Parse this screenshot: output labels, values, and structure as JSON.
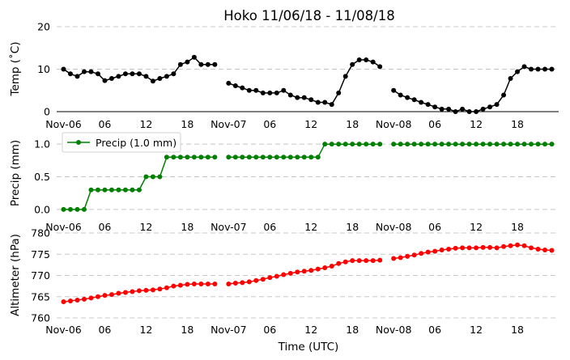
{
  "chart_data": {
    "type": "line",
    "title": "Hoko 11/06/18 - 11/08/18",
    "xlabel": "Time (UTC)",
    "x_tick_labels": [
      "Nov-06",
      "06",
      "12",
      "18",
      "Nov-07",
      "06",
      "12",
      "18",
      "Nov-08",
      "06",
      "12",
      "18"
    ],
    "x_tick_hours": [
      0,
      6,
      12,
      18,
      24,
      30,
      36,
      42,
      48,
      54,
      60,
      66
    ],
    "xlim_hours": [
      -1,
      72
    ],
    "panels": [
      {
        "ylabel": "Temp ($^\\circ$C)",
        "ylabel_display": "Temp (˚C)",
        "ylim": [
          0,
          20
        ],
        "yticks": [
          "0",
          "10",
          "20"
        ],
        "ytick_values": [
          0,
          10,
          20
        ],
        "grid": true,
        "color": "#000000",
        "series": [
          {
            "x": [
              0,
              1,
              2,
              3,
              4,
              5,
              6,
              7,
              8,
              9,
              10,
              11,
              12,
              13,
              14,
              15,
              16,
              17,
              18,
              19,
              20,
              21,
              22,
              23,
              24,
              25,
              26,
              27,
              28,
              29,
              30,
              31,
              32,
              33,
              34,
              35,
              36,
              37,
              38,
              39,
              40,
              41,
              42,
              43,
              44,
              45,
              46,
              47,
              48,
              49,
              50,
              51,
              52,
              53,
              54,
              55,
              56,
              57,
              58,
              59,
              60,
              61,
              62,
              63,
              64,
              65,
              66,
              67,
              68,
              69,
              70,
              71
            ],
            "values": [
              10,
              8.9,
              8.3,
              9.4,
              9.4,
              8.9,
              7.3,
              7.8,
              8.3,
              8.9,
              8.9,
              8.9,
              8.3,
              7.2,
              7.8,
              8.3,
              8.9,
              11.1,
              11.7,
              12.8,
              11.1,
              11.1,
              11.1,
              null,
              6.7,
              6.1,
              5.6,
              5,
              5,
              4.4,
              4.4,
              4.4,
              5,
              3.9,
              3.3,
              3.3,
              2.8,
              2.2,
              2.2,
              1.7,
              4.4,
              8.3,
              11.1,
              12.2,
              12.2,
              11.7,
              10.6,
              null,
              5,
              3.9,
              3.3,
              2.8,
              2.2,
              1.7,
              1.1,
              0.6,
              0.6,
              0,
              0.6,
              0,
              0,
              0.6,
              1.1,
              1.7,
              3.9,
              7.8,
              9.4,
              10.6,
              10,
              10,
              10,
              10
            ]
          }
        ]
      },
      {
        "ylabel": "Precip (mm)",
        "ylim": [
          -0.1,
          1.2
        ],
        "yticks": [
          "0.0",
          "0.5",
          "1.0"
        ],
        "ytick_values": [
          0,
          0.5,
          1.0
        ],
        "grid": true,
        "legend": "upper left",
        "color": "#008000",
        "series": [
          {
            "name": "Precip (1.0 mm)",
            "x": [
              0,
              1,
              2,
              3,
              4,
              5,
              6,
              7,
              8,
              9,
              10,
              11,
              12,
              13,
              14,
              15,
              16,
              17,
              18,
              19,
              20,
              21,
              22,
              23,
              24,
              25,
              26,
              27,
              28,
              29,
              30,
              31,
              32,
              33,
              34,
              35,
              36,
              37,
              38,
              39,
              40,
              41,
              42,
              43,
              44,
              45,
              46,
              47,
              48,
              49,
              50,
              51,
              52,
              53,
              54,
              55,
              56,
              57,
              58,
              59,
              60,
              61,
              62,
              63,
              64,
              65,
              66,
              67,
              68,
              69,
              70,
              71
            ],
            "values": [
              0,
              0,
              0,
              0,
              0.3,
              0.3,
              0.3,
              0.3,
              0.3,
              0.3,
              0.3,
              0.3,
              0.5,
              0.5,
              0.5,
              0.8,
              0.8,
              0.8,
              0.8,
              0.8,
              0.8,
              0.8,
              0.8,
              null,
              0.8,
              0.8,
              0.8,
              0.8,
              0.8,
              0.8,
              0.8,
              0.8,
              0.8,
              0.8,
              0.8,
              0.8,
              0.8,
              0.8,
              1,
              1,
              1,
              1,
              1,
              1,
              1,
              1,
              1,
              null,
              1,
              1,
              1,
              1,
              1,
              1,
              1,
              1,
              1,
              1,
              1,
              1,
              1,
              1,
              1,
              1,
              1,
              1,
              1,
              1,
              1,
              1,
              1,
              1
            ]
          }
        ]
      },
      {
        "ylabel": "Altimeter (hPa)",
        "ylim": [
          760,
          780
        ],
        "yticks": [
          "760",
          "765",
          "770",
          "775",
          "780"
        ],
        "ytick_values": [
          760,
          765,
          770,
          775,
          780
        ],
        "grid": true,
        "color": "#ff0000",
        "series": [
          {
            "x": [
              0,
              1,
              2,
              3,
              4,
              5,
              6,
              7,
              8,
              9,
              10,
              11,
              12,
              13,
              14,
              15,
              16,
              17,
              18,
              19,
              20,
              21,
              22,
              23,
              24,
              25,
              26,
              27,
              28,
              29,
              30,
              31,
              32,
              33,
              34,
              35,
              36,
              37,
              38,
              39,
              40,
              41,
              42,
              43,
              44,
              45,
              46,
              47,
              48,
              49,
              50,
              51,
              52,
              53,
              54,
              55,
              56,
              57,
              58,
              59,
              60,
              61,
              62,
              63,
              64,
              65,
              66,
              67,
              68,
              69,
              70,
              71
            ],
            "values": [
              763.8,
              764,
              764.2,
              764.4,
              764.7,
              765,
              765.3,
              765.5,
              765.8,
              766,
              766.2,
              766.4,
              766.5,
              766.6,
              766.8,
              767.1,
              767.5,
              767.7,
              767.9,
              768,
              768,
              768,
              768,
              null,
              768,
              768.2,
              768.3,
              768.5,
              768.8,
              769.1,
              769.5,
              769.8,
              770.2,
              770.5,
              770.8,
              771,
              771.2,
              771.5,
              771.8,
              772.2,
              772.8,
              773.2,
              773.5,
              773.5,
              773.5,
              773.5,
              773.6,
              null,
              774,
              774.2,
              774.5,
              774.8,
              775.2,
              775.5,
              775.7,
              776,
              776.2,
              776.4,
              776.5,
              776.5,
              776.5,
              776.6,
              776.6,
              776.5,
              776.8,
              777,
              777.2,
              777,
              776.5,
              776.2,
              776,
              775.9
            ]
          }
        ]
      }
    ]
  }
}
